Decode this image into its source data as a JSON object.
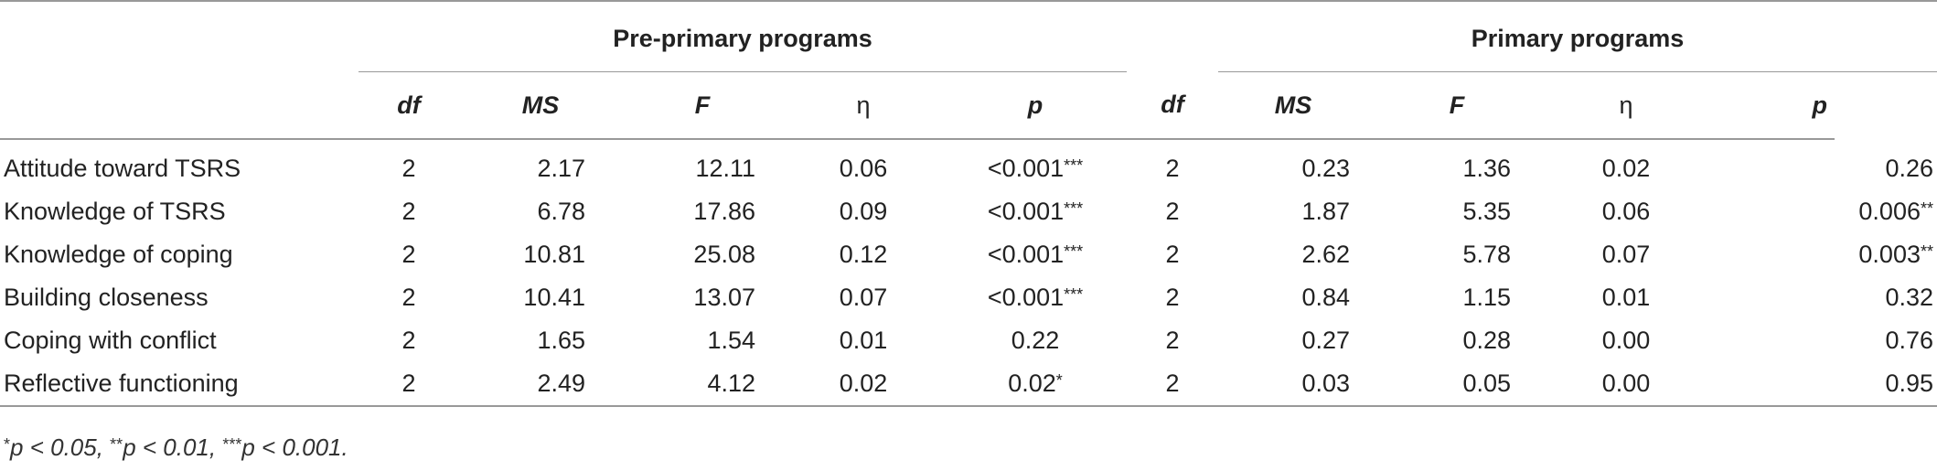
{
  "groups": {
    "pre": "Pre-primary programs",
    "pri": "Primary programs"
  },
  "headers": {
    "df": "df",
    "ms": "MS",
    "f": "F",
    "eta": "η",
    "p": "p"
  },
  "rows": [
    {
      "label": "Attitude toward TSRS",
      "pre": {
        "df": "2",
        "ms": "2.17",
        "f": "12.11",
        "eta": "0.06",
        "p": "<0.001",
        "stars": "***"
      },
      "pri": {
        "df": "2",
        "ms": "0.23",
        "f": "1.36",
        "eta": "0.02",
        "p": "0.26",
        "stars": ""
      }
    },
    {
      "label": "Knowledge of TSRS",
      "pre": {
        "df": "2",
        "ms": "6.78",
        "f": "17.86",
        "eta": "0.09",
        "p": "<0.001",
        "stars": "***"
      },
      "pri": {
        "df": "2",
        "ms": "1.87",
        "f": "5.35",
        "eta": "0.06",
        "p": "0.006",
        "stars": "**"
      }
    },
    {
      "label": "Knowledge of coping",
      "pre": {
        "df": "2",
        "ms": "10.81",
        "f": "25.08",
        "eta": "0.12",
        "p": "<0.001",
        "stars": "***"
      },
      "pri": {
        "df": "2",
        "ms": "2.62",
        "f": "5.78",
        "eta": "0.07",
        "p": "0.003",
        "stars": "**"
      }
    },
    {
      "label": "Building closeness",
      "pre": {
        "df": "2",
        "ms": "10.41",
        "f": "13.07",
        "eta": "0.07",
        "p": "<0.001",
        "stars": "***"
      },
      "pri": {
        "df": "2",
        "ms": "0.84",
        "f": "1.15",
        "eta": "0.01",
        "p": "0.32",
        "stars": ""
      }
    },
    {
      "label": "Coping with conflict",
      "pre": {
        "df": "2",
        "ms": "1.65",
        "f": "1.54",
        "eta": "0.01",
        "p": "0.22",
        "stars": ""
      },
      "pri": {
        "df": "2",
        "ms": "0.27",
        "f": "0.28",
        "eta": "0.00",
        "p": "0.76",
        "stars": ""
      }
    },
    {
      "label": "Reflective functioning",
      "pre": {
        "df": "2",
        "ms": "2.49",
        "f": "4.12",
        "eta": "0.02",
        "p": "0.02",
        "stars": "*"
      },
      "pri": {
        "df": "2",
        "ms": "0.03",
        "f": "0.05",
        "eta": "0.00",
        "p": "0.95",
        "stars": ""
      }
    }
  ],
  "footnote": {
    "s1": "*",
    "t1": "p < 0.05, ",
    "s2": "**",
    "t2": "p < 0.01, ",
    "s3": "***",
    "t3": "p < 0.001."
  }
}
